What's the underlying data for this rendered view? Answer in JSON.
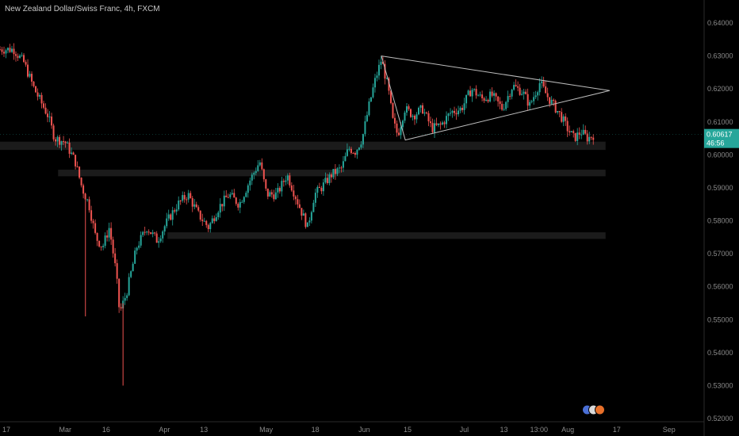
{
  "header": {
    "symbol_title": "New Zealand Dollar/Swiss Franc, 4h, FXCM"
  },
  "colors": {
    "background": "#000000",
    "up": "#26a69a",
    "down": "#ef5350",
    "price_badge": "#26a69a",
    "trendline": "#bdbdbd",
    "zone": "#1b1b1b"
  },
  "chart_data": {
    "type": "candlestick",
    "timeframe": "4h",
    "ylim": [
      0.52,
      0.64
    ],
    "y_ticks": [
      "0.64000",
      "0.63000",
      "0.62000",
      "0.61000",
      "0.60000",
      "0.59000",
      "0.58000",
      "0.57000",
      "0.56000",
      "0.55000",
      "0.54000",
      "0.53000",
      "0.52000"
    ],
    "x_ticks": [
      {
        "label": "17",
        "pos": 0.0
      },
      {
        "label": "Mar",
        "pos": 0.083
      },
      {
        "label": "16",
        "pos": 0.146
      },
      {
        "label": "Apr",
        "pos": 0.229
      },
      {
        "label": "13",
        "pos": 0.289
      },
      {
        "label": "May",
        "pos": 0.376
      },
      {
        "label": "18",
        "pos": 0.452
      },
      {
        "label": "Jun",
        "pos": 0.521
      },
      {
        "label": "15",
        "pos": 0.587
      },
      {
        "label": "Jul",
        "pos": 0.669
      },
      {
        "label": "13",
        "pos": 0.728
      },
      {
        "label": "13:00",
        "pos": 0.772
      },
      {
        "label": "Aug",
        "pos": 0.818
      },
      {
        "label": "17",
        "pos": 0.893
      },
      {
        "label": "Sep",
        "pos": 0.966
      }
    ],
    "last_price": "0.60617",
    "countdown": "46:56",
    "path": [
      [
        0.0,
        0.632
      ],
      [
        0.02,
        0.632
      ],
      [
        0.035,
        0.628
      ],
      [
        0.05,
        0.62
      ],
      [
        0.07,
        0.612
      ],
      [
        0.08,
        0.605
      ],
      [
        0.095,
        0.604
      ],
      [
        0.11,
        0.598
      ],
      [
        0.12,
        0.59
      ],
      [
        0.13,
        0.585
      ],
      [
        0.14,
        0.575
      ],
      [
        0.15,
        0.572
      ],
      [
        0.16,
        0.578
      ],
      [
        0.17,
        0.564
      ],
      [
        0.175,
        0.552
      ],
      [
        0.185,
        0.558
      ],
      [
        0.2,
        0.572
      ],
      [
        0.215,
        0.578
      ],
      [
        0.23,
        0.574
      ],
      [
        0.245,
        0.58
      ],
      [
        0.26,
        0.585
      ],
      [
        0.275,
        0.588
      ],
      [
        0.29,
        0.582
      ],
      [
        0.305,
        0.578
      ],
      [
        0.32,
        0.584
      ],
      [
        0.335,
        0.588
      ],
      [
        0.35,
        0.585
      ],
      [
        0.365,
        0.592
      ],
      [
        0.38,
        0.598
      ],
      [
        0.39,
        0.588
      ],
      [
        0.405,
        0.588
      ],
      [
        0.42,
        0.594
      ],
      [
        0.435,
        0.586
      ],
      [
        0.45,
        0.578
      ],
      [
        0.46,
        0.588
      ],
      [
        0.47,
        0.59
      ],
      [
        0.485,
        0.594
      ],
      [
        0.5,
        0.596
      ],
      [
        0.51,
        0.602
      ],
      [
        0.52,
        0.601
      ],
      [
        0.53,
        0.605
      ],
      [
        0.54,
        0.615
      ],
      [
        0.548,
        0.622
      ],
      [
        0.558,
        0.629
      ],
      [
        0.568,
        0.62
      ],
      [
        0.575,
        0.61
      ],
      [
        0.582,
        0.606
      ],
      [
        0.592,
        0.614
      ],
      [
        0.605,
        0.612
      ],
      [
        0.618,
        0.614
      ],
      [
        0.632,
        0.608
      ],
      [
        0.645,
        0.609
      ],
      [
        0.66,
        0.613
      ],
      [
        0.675,
        0.614
      ],
      [
        0.69,
        0.62
      ],
      [
        0.705,
        0.617
      ],
      [
        0.72,
        0.618
      ],
      [
        0.735,
        0.614
      ],
      [
        0.75,
        0.621
      ],
      [
        0.765,
        0.619
      ],
      [
        0.775,
        0.615
      ],
      [
        0.79,
        0.622
      ],
      [
        0.8,
        0.618
      ],
      [
        0.81,
        0.615
      ],
      [
        0.82,
        0.612
      ],
      [
        0.83,
        0.608
      ],
      [
        0.84,
        0.605
      ],
      [
        0.85,
        0.607
      ],
      [
        0.86,
        0.605
      ],
      [
        0.868,
        0.606
      ]
    ],
    "spikes": [
      {
        "pos": 0.125,
        "low": 0.551
      },
      {
        "pos": 0.18,
        "low": 0.53
      }
    ],
    "triangle": [
      {
        "pos": 0.558,
        "price": 0.63
      },
      {
        "pos": 0.892,
        "price": 0.6195
      },
      {
        "pos": 0.593,
        "price": 0.6045
      }
    ],
    "zones": [
      {
        "from": 0.0,
        "to": 0.886,
        "low": 0.6015,
        "high": 0.604
      },
      {
        "from": 0.085,
        "to": 0.886,
        "low": 0.5935,
        "high": 0.5955
      },
      {
        "from": 0.245,
        "to": 0.886,
        "low": 0.5745,
        "high": 0.5765
      }
    ]
  }
}
